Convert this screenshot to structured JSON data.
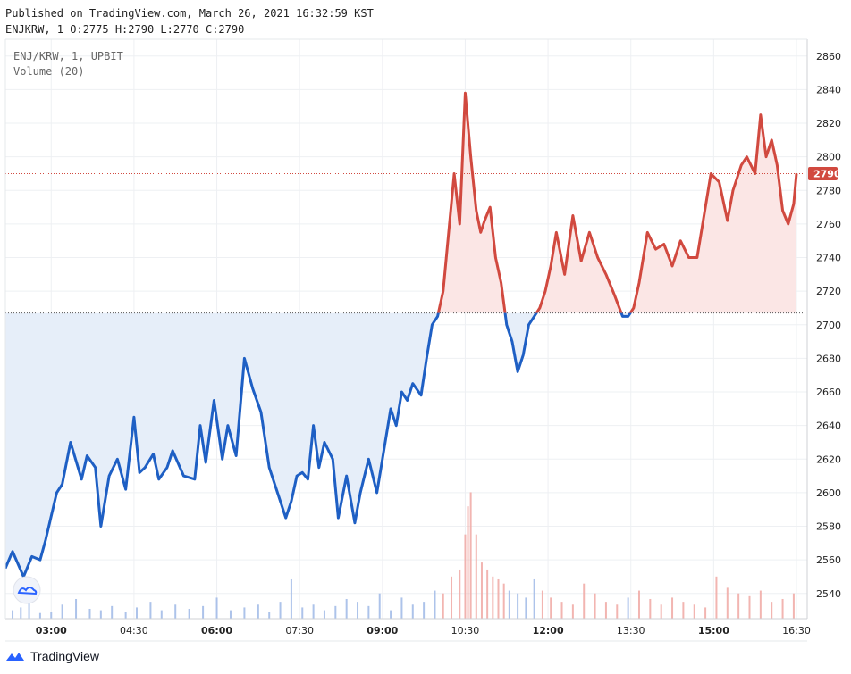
{
  "header": {
    "published_line": "Published on TradingView.com, March 26, 2021 16:32:59 KST",
    "ohlc_line": "ENJKRW, 1 O:2775 H:2790 L:2770 C:2790"
  },
  "footer": {
    "brand": "TradingView"
  },
  "colors": {
    "up_line": "#d1493f",
    "down_line": "#1e5fc4",
    "up_fill": "#fbe6e5",
    "down_fill": "#e6eef9",
    "current_price_label": "#d1493f",
    "grid": "#eef0f3",
    "axis_border": "#d6d8dc"
  },
  "icons": {
    "chart_widget": "tradingview-cloud-icon",
    "brand_logo": "tradingview-logo-icon"
  },
  "chart_data": {
    "type": "area",
    "symbol": "ENJ/KRW, 1, UPBIT",
    "indicator": "Volume (20)",
    "baseline": 2707,
    "last_price": 2790,
    "last_price_label": "2790",
    "y_ticks": [
      2540,
      2560,
      2580,
      2600,
      2620,
      2640,
      2660,
      2680,
      2700,
      2720,
      2740,
      2760,
      2780,
      2800,
      2820,
      2840,
      2860
    ],
    "x_ticks": [
      {
        "label": "03:00",
        "time": 3.0,
        "bold": true
      },
      {
        "label": "04:30",
        "time": 4.5,
        "bold": false
      },
      {
        "label": "06:00",
        "time": 6.0,
        "bold": true
      },
      {
        "label": "07:30",
        "time": 7.5,
        "bold": false
      },
      {
        "label": "09:00",
        "time": 9.0,
        "bold": true
      },
      {
        "label": "10:30",
        "time": 10.5,
        "bold": false
      },
      {
        "label": "12:00",
        "time": 12.0,
        "bold": true
      },
      {
        "label": "13:30",
        "time": 13.5,
        "bold": false
      },
      {
        "label": "15:00",
        "time": 15.0,
        "bold": true
      },
      {
        "label": "16:30",
        "time": 16.5,
        "bold": false
      }
    ],
    "xlim": [
      2.17,
      16.5
    ],
    "ylim": [
      2525,
      2870
    ],
    "grid": true,
    "series": [
      {
        "x": [
          2.17,
          2.3,
          2.5,
          2.65,
          2.8,
          2.9,
          3.1,
          3.2,
          3.35,
          3.55,
          3.65,
          3.8,
          3.9,
          4.05,
          4.2,
          4.35,
          4.5,
          4.6,
          4.7,
          4.85,
          4.95,
          5.1,
          5.2,
          5.4,
          5.6,
          5.7,
          5.8,
          5.95,
          6.1,
          6.2,
          6.35,
          6.5,
          6.65,
          6.8,
          6.95,
          7.1,
          7.25,
          7.35,
          7.45,
          7.55,
          7.65,
          7.75,
          7.85,
          7.95,
          8.1,
          8.2,
          8.35,
          8.5,
          8.6,
          8.75,
          8.9,
          9.05,
          9.15,
          9.25,
          9.35,
          9.45,
          9.55,
          9.7,
          9.8,
          9.9,
          10.0,
          10.1,
          10.2,
          10.3,
          10.4,
          10.5,
          10.6,
          10.7,
          10.78,
          10.85,
          10.95,
          11.05,
          11.15,
          11.25,
          11.35,
          11.45,
          11.55,
          11.65,
          11.75,
          11.85,
          11.95,
          12.05,
          12.15,
          12.3,
          12.45,
          12.6,
          12.75,
          12.9,
          13.05,
          13.2,
          13.35,
          13.45,
          13.55,
          13.65,
          13.8,
          13.95,
          14.1,
          14.25,
          14.4,
          14.55,
          14.7,
          14.8,
          14.95,
          15.1,
          15.25,
          15.35,
          15.5,
          15.6,
          15.75,
          15.85,
          15.95,
          16.05,
          16.15,
          16.25,
          16.35,
          16.45,
          16.5
        ],
        "y": [
          2555,
          2565,
          2550,
          2562,
          2560,
          2572,
          2600,
          2605,
          2630,
          2608,
          2622,
          2615,
          2580,
          2610,
          2620,
          2602,
          2645,
          2612,
          2615,
          2623,
          2608,
          2615,
          2625,
          2610,
          2608,
          2640,
          2618,
          2655,
          2620,
          2640,
          2622,
          2680,
          2662,
          2648,
          2615,
          2600,
          2585,
          2595,
          2610,
          2612,
          2608,
          2640,
          2615,
          2630,
          2620,
          2585,
          2610,
          2582,
          2600,
          2620,
          2600,
          2630,
          2650,
          2640,
          2660,
          2655,
          2665,
          2658,
          2680,
          2700,
          2705,
          2720,
          2755,
          2790,
          2760,
          2838,
          2800,
          2768,
          2755,
          2762,
          2770,
          2740,
          2725,
          2700,
          2690,
          2672,
          2682,
          2700,
          2705,
          2710,
          2720,
          2735,
          2755,
          2730,
          2765,
          2738,
          2755,
          2740,
          2730,
          2718,
          2705,
          2705,
          2710,
          2725,
          2755,
          2745,
          2748,
          2735,
          2750,
          2740,
          2740,
          2760,
          2790,
          2785,
          2762,
          2780,
          2795,
          2800,
          2790,
          2825,
          2800,
          2810,
          2795,
          2768,
          2760,
          2772,
          2790
        ]
      }
    ],
    "volume": {
      "ylim": [
        0,
        110
      ],
      "x": [
        2.3,
        2.45,
        2.6,
        2.8,
        3.0,
        3.2,
        3.45,
        3.7,
        3.9,
        4.1,
        4.35,
        4.55,
        4.8,
        5.0,
        5.25,
        5.5,
        5.75,
        6.0,
        6.25,
        6.5,
        6.75,
        6.95,
        7.15,
        7.35,
        7.55,
        7.75,
        7.95,
        8.15,
        8.35,
        8.55,
        8.75,
        8.95,
        9.15,
        9.35,
        9.55,
        9.75,
        9.95,
        10.1,
        10.25,
        10.4,
        10.5,
        10.55,
        10.6,
        10.7,
        10.8,
        10.9,
        11.0,
        11.1,
        11.2,
        11.3,
        11.45,
        11.6,
        11.75,
        11.9,
        12.05,
        12.25,
        12.45,
        12.65,
        12.85,
        13.05,
        13.25,
        13.45,
        13.65,
        13.85,
        14.05,
        14.25,
        14.45,
        14.65,
        14.85,
        15.05,
        15.25,
        15.45,
        15.65,
        15.85,
        16.05,
        16.25,
        16.45
      ],
      "values": [
        6,
        8,
        12,
        4,
        5,
        10,
        14,
        7,
        6,
        9,
        5,
        8,
        12,
        6,
        10,
        7,
        9,
        15,
        6,
        8,
        10,
        5,
        12,
        28,
        8,
        10,
        6,
        9,
        14,
        12,
        9,
        18,
        6,
        15,
        10,
        12,
        20,
        18,
        30,
        35,
        60,
        80,
        90,
        60,
        40,
        35,
        30,
        28,
        25,
        20,
        18,
        15,
        28,
        20,
        15,
        12,
        10,
        25,
        18,
        12,
        10,
        15,
        20,
        14,
        10,
        15,
        12,
        10,
        8,
        30,
        22,
        18,
        16,
        20,
        12,
        14,
        18
      ]
    }
  }
}
